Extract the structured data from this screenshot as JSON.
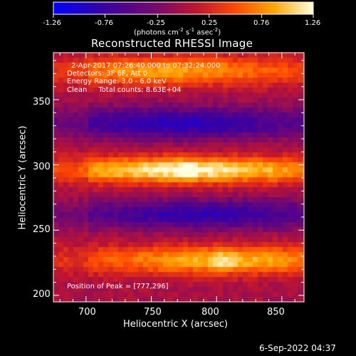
{
  "colorbar": {
    "ticks": [
      "-1.26",
      "-0.76",
      "-0.25",
      "0.25",
      "0.76",
      "1.26"
    ],
    "tick_values": [
      -1.26,
      -0.76,
      -0.25,
      0.25,
      0.76,
      1.26
    ],
    "unit_prefix": "(photons cm",
    "unit_exp1": "-2",
    "unit_mid": " s",
    "unit_exp2": "-1",
    "unit_asec": " asec",
    "unit_suffix": ")",
    "colors": [
      "#0000ff",
      "#4b0082",
      "#b0104a",
      "#ff5000",
      "#ffb000",
      "#ffffcc"
    ]
  },
  "chart_data": {
    "type": "heatmap",
    "title": "Reconstructed RHESSI Image",
    "xlabel": "Heliocentric X (arcsec)",
    "ylabel": "Heliocentric Y (arcsec)",
    "xlim": [
      675,
      867
    ],
    "ylim": [
      195,
      386
    ],
    "xticks": [
      700,
      750,
      800,
      850
    ],
    "yticks": [
      200,
      250,
      300,
      350
    ],
    "xtick_labels": [
      "700",
      "750",
      "800",
      "850"
    ],
    "ytick_labels": [
      "200",
      "250",
      "300",
      "350"
    ],
    "clim": [
      -1.26,
      1.26
    ],
    "peak": [
      777,
      296
    ],
    "bands": [
      {
        "y": 372,
        "x0": 765,
        "peak": 0.85,
        "width": 11
      },
      {
        "y": 332,
        "x0": 770,
        "peak": -0.9,
        "width": 12
      },
      {
        "y": 296,
        "x0": 777,
        "peak": 1.26,
        "width": 10
      },
      {
        "y": 262,
        "x0": 790,
        "peak": -0.85,
        "width": 11
      },
      {
        "y": 227,
        "x0": 806,
        "peak": 0.95,
        "width": 11
      }
    ],
    "annotations": {
      "time": "2-Apr-2017 07:26:40.000 to 07:32:24.000",
      "detectors": "Detectors: 3F 6F, Att 0",
      "energy": "Energy Range: 3.0 - 6.0 keV",
      "clean": "Clean     Total counts: 8.63E+04",
      "peak_label": "Position of Peak = [777,296]"
    }
  },
  "timestamp": "6-Sep-2022 04:37"
}
